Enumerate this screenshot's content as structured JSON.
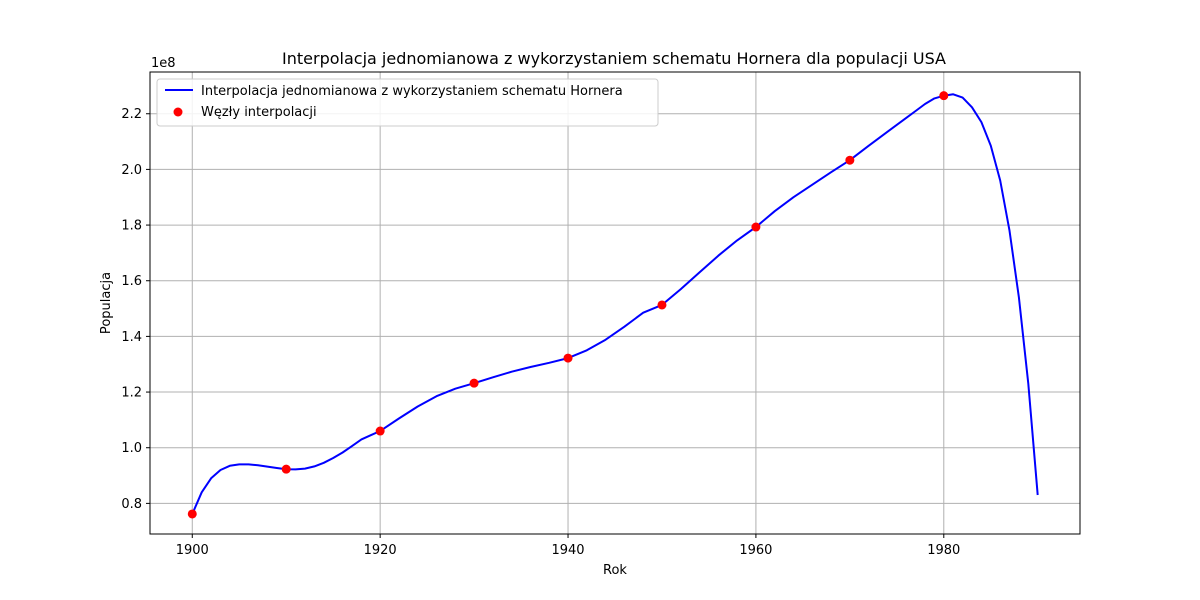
{
  "chart_data": {
    "type": "line",
    "title": "Interpolacja jednomianowa z wykorzystaniem schematu Hornera dla populacji USA",
    "xlabel": "Rok",
    "ylabel": "Populacja",
    "y_offset_label": "1e8",
    "xlim": [
      1895.5,
      1994.5
    ],
    "ylim": [
      69000000,
      235000000
    ],
    "xticks": [
      1900,
      1920,
      1940,
      1960,
      1980
    ],
    "xtick_labels": [
      "1900",
      "1920",
      "1940",
      "1960",
      "1980"
    ],
    "yticks": [
      80000000,
      100000000,
      120000000,
      140000000,
      160000000,
      180000000,
      200000000,
      220000000
    ],
    "ytick_labels": [
      "0.8",
      "1.0",
      "1.2",
      "1.4",
      "1.6",
      "1.8",
      "2.0",
      "2.2"
    ],
    "grid": true,
    "legend_position": "top-left",
    "series": [
      {
        "name": "Interpolacja jednomianowa z wykorzystaniem schematu Hornera",
        "kind": "line",
        "color": "#0000ff",
        "x": [
          1900,
          1901,
          1902,
          1903,
          1904,
          1905,
          1906,
          1907,
          1908,
          1909,
          1910,
          1911,
          1912,
          1913,
          1914,
          1915,
          1916,
          1917,
          1918,
          1919,
          1920,
          1922,
          1924,
          1926,
          1928,
          1930,
          1932,
          1934,
          1936,
          1938,
          1940,
          1942,
          1944,
          1946,
          1948,
          1950,
          1952,
          1954,
          1956,
          1958,
          1960,
          1962,
          1964,
          1966,
          1968,
          1970,
          1972,
          1974,
          1976,
          1977,
          1978,
          1979,
          1980,
          1981,
          1982,
          1983,
          1984,
          1985,
          1986,
          1987,
          1988,
          1989,
          1990
        ],
        "y": [
          76200000,
          84000000,
          89000000,
          92000000,
          93500000,
          94000000,
          94000000,
          93700000,
          93200000,
          92700000,
          92300000,
          92200000,
          92500000,
          93300000,
          94600000,
          96300000,
          98300000,
          100600000,
          103000000,
          104500000,
          106000000,
          110500000,
          114800000,
          118500000,
          121200000,
          123200000,
          125300000,
          127300000,
          129000000,
          130500000,
          132200000,
          135000000,
          138800000,
          143500000,
          148500000,
          151300000,
          157000000,
          163000000,
          169000000,
          174500000,
          179300000,
          185000000,
          190000000,
          194500000,
          199000000,
          203300000,
          208500000,
          213500000,
          218500000,
          221000000,
          223500000,
          225500000,
          226500000,
          227000000,
          225800000,
          222300000,
          217000000,
          208500000,
          196000000,
          178000000,
          154000000,
          123000000,
          83000000
        ]
      },
      {
        "name": "Węzły interpolacji",
        "kind": "scatter",
        "color": "#ff0000",
        "x": [
          1900,
          1910,
          1920,
          1930,
          1940,
          1950,
          1960,
          1970,
          1980
        ],
        "y": [
          76200000,
          92300000,
          106000000,
          123200000,
          132200000,
          151300000,
          179300000,
          203300000,
          226500000
        ]
      }
    ]
  }
}
